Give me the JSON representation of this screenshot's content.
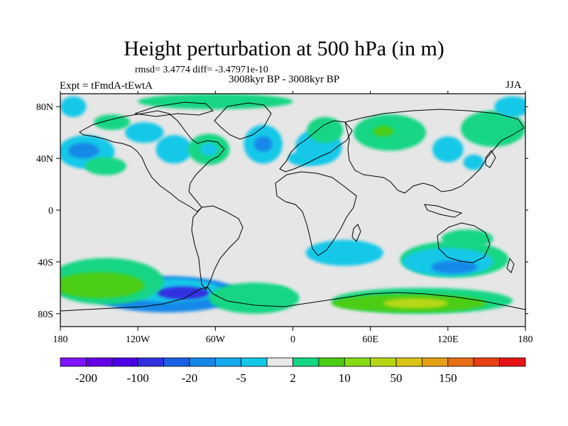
{
  "title": "Height perturbation at 500 hPa (in m)",
  "stats": "rmsd= 3.4774 diff= -3.47971e-10",
  "period": "3008kyr BP - 3008kyr BP",
  "experiment": "Expt = tFmdA-tEwtA",
  "season": "JJA",
  "map": {
    "lon_range": [
      -180,
      180
    ],
    "lat_range": [
      -90,
      90
    ],
    "background": "#e6e6e6",
    "x_ticks": [
      {
        "value": -180,
        "label": "180"
      },
      {
        "value": -120,
        "label": "120W"
      },
      {
        "value": -60,
        "label": "60W"
      },
      {
        "value": 0,
        "label": "0"
      },
      {
        "value": 60,
        "label": "60E"
      },
      {
        "value": 120,
        "label": "120E"
      },
      {
        "value": 180,
        "label": "180"
      }
    ],
    "y_ticks": [
      {
        "value": 80,
        "label": "80N"
      },
      {
        "value": 40,
        "label": "40N"
      },
      {
        "value": 0,
        "label": "0"
      },
      {
        "value": -40,
        "label": "40S"
      },
      {
        "value": -80,
        "label": "80S"
      }
    ],
    "anomalies": [
      {
        "lon": -98,
        "lat": -65,
        "rlon": 58,
        "rlat": 14,
        "value": -20
      },
      {
        "lon": -95,
        "lat": -62,
        "rlon": 40,
        "rlat": 9,
        "value": -5
      },
      {
        "lon": -85,
        "lat": -64,
        "rlon": 20,
        "rlat": 5,
        "value": -100
      },
      {
        "lon": -145,
        "lat": -55,
        "rlon": 45,
        "rlat": 18,
        "value": 2
      },
      {
        "lon": -150,
        "lat": -58,
        "rlon": 35,
        "rlat": 10,
        "value": 10
      },
      {
        "lon": -30,
        "lat": -68,
        "rlon": 35,
        "rlat": 12,
        "value": 2
      },
      {
        "lon": 100,
        "lat": -70,
        "rlon": 70,
        "rlat": 10,
        "value": 2
      },
      {
        "lon": 90,
        "lat": -72,
        "rlon": 60,
        "rlat": 7,
        "value": 10
      },
      {
        "lon": 95,
        "lat": -72,
        "rlon": 25,
        "rlat": 4,
        "value": 50
      },
      {
        "lon": 125,
        "lat": -38,
        "rlon": 42,
        "rlat": 14,
        "value": 2
      },
      {
        "lon": 120,
        "lat": -40,
        "rlon": 35,
        "rlat": 11,
        "value": -5
      },
      {
        "lon": 125,
        "lat": -44,
        "rlon": 18,
        "rlat": 5,
        "value": -20
      },
      {
        "lon": 135,
        "lat": -22,
        "rlon": 20,
        "rlat": 7,
        "value": 2
      },
      {
        "lon": 40,
        "lat": -33,
        "rlon": 30,
        "rlat": 10,
        "value": -5
      },
      {
        "lon": -12,
        "lat": -64,
        "rlon": 10,
        "rlat": 5,
        "value": 2
      },
      {
        "lon": -160,
        "lat": 45,
        "rlon": 22,
        "rlat": 13,
        "value": -5
      },
      {
        "lon": -162,
        "lat": 46,
        "rlon": 12,
        "rlat": 6,
        "value": -20
      },
      {
        "lon": -145,
        "lat": 34,
        "rlon": 16,
        "rlat": 7,
        "value": 2
      },
      {
        "lon": -92,
        "lat": 47,
        "rlon": 14,
        "rlat": 11,
        "value": -5
      },
      {
        "lon": -65,
        "lat": 47,
        "rlon": 16,
        "rlat": 12,
        "value": 2
      },
      {
        "lon": -65,
        "lat": 47,
        "rlon": 7,
        "rlat": 5,
        "value": -5
      },
      {
        "lon": -23,
        "lat": 51,
        "rlon": 15,
        "rlat": 15,
        "value": -5
      },
      {
        "lon": -23,
        "lat": 51,
        "rlon": 7,
        "rlat": 6,
        "value": -20
      },
      {
        "lon": 20,
        "lat": 49,
        "rlon": 18,
        "rlat": 14,
        "value": -5
      },
      {
        "lon": 25,
        "lat": 62,
        "rlon": 14,
        "rlat": 10,
        "value": 2
      },
      {
        "lon": 10,
        "lat": 40,
        "rlon": 14,
        "rlat": 6,
        "value": -5
      },
      {
        "lon": 75,
        "lat": 60,
        "rlon": 28,
        "rlat": 14,
        "value": 2
      },
      {
        "lon": 70,
        "lat": 61,
        "rlon": 8,
        "rlat": 4,
        "value": 10
      },
      {
        "lon": 155,
        "lat": 63,
        "rlon": 25,
        "rlat": 14,
        "value": 2
      },
      {
        "lon": 120,
        "lat": 47,
        "rlon": 12,
        "rlat": 10,
        "value": -5
      },
      {
        "lon": 140,
        "lat": 37,
        "rlon": 8,
        "rlat": 6,
        "value": -5
      },
      {
        "lon": -115,
        "lat": 60,
        "rlon": 15,
        "rlat": 8,
        "value": -5
      },
      {
        "lon": -140,
        "lat": 68,
        "rlon": 14,
        "rlat": 6,
        "value": 2
      },
      {
        "lon": -60,
        "lat": 84,
        "rlon": 60,
        "rlat": 6,
        "value": 2
      },
      {
        "lon": -170,
        "lat": 80,
        "rlon": 10,
        "rlat": 8,
        "value": -5
      },
      {
        "lon": 170,
        "lat": 80,
        "rlon": 14,
        "rlat": 8,
        "value": -5
      }
    ]
  },
  "colorbar": {
    "colors": [
      "#7f13ff",
      "#6600e6",
      "#4d00e6",
      "#3030e0",
      "#1a60e6",
      "#1488e8",
      "#14aaf0",
      "#14c8e8",
      "#e8e8e8",
      "#14d684",
      "#4ccd14",
      "#86dc14",
      "#b6d814",
      "#d8c414",
      "#e6a014",
      "#e67014",
      "#e64014",
      "#e61414"
    ],
    "labels": [
      "-200",
      "-100",
      "-20",
      "-5",
      "2",
      "10",
      "50",
      "150"
    ]
  },
  "levels": [
    -200,
    -100,
    -20,
    -5,
    2,
    10,
    50,
    150
  ]
}
